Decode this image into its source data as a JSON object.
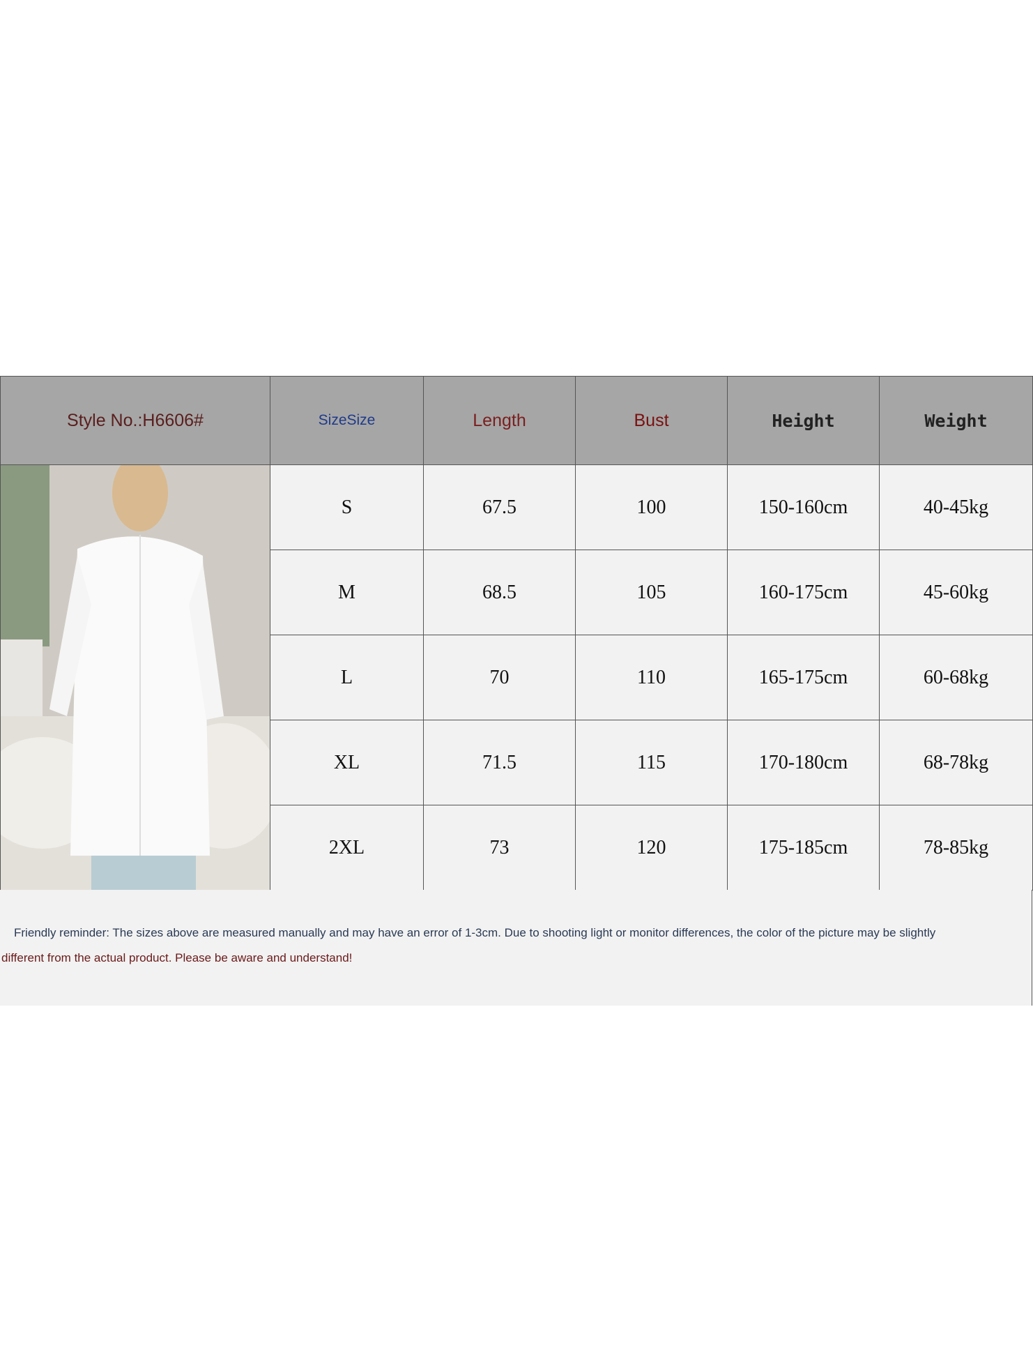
{
  "header": {
    "style_no": "Style No.:H6606#",
    "columns": [
      "SizeSize",
      "Length",
      "Bust",
      "Height",
      "Weight"
    ]
  },
  "table": {
    "rows": [
      [
        "S",
        "67.5",
        "100",
        "150-160cm",
        "40-45kg"
      ],
      [
        "M",
        "68.5",
        "105",
        "160-175cm",
        "45-60kg"
      ],
      [
        "L",
        "70",
        "110",
        "165-175cm",
        "60-68kg"
      ],
      [
        "XL",
        "71.5",
        "115",
        "170-180cm",
        "68-78kg"
      ],
      [
        "2XL",
        "73",
        "120",
        "175-185cm",
        "78-85kg"
      ]
    ]
  },
  "reminder": {
    "line1": "Friendly reminder: The sizes above are measured manually and may have an error of 1-3cm. Due to shooting light or monitor differences, the color of the picture may be slightly",
    "line2": "different from the actual product. Please be aware and understand!"
  }
}
